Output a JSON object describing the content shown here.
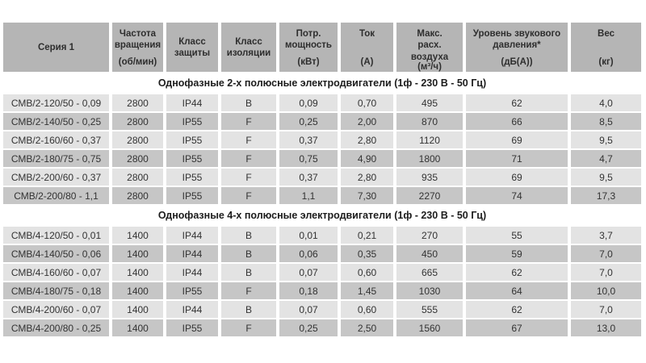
{
  "colors": {
    "page_bg": "#ffffff",
    "header_bg": "#b5b5b5",
    "row_light": "#e3e3e3",
    "row_dark": "#c6c6c6",
    "text": "#333333",
    "heading_text": "#1c1c1c"
  },
  "table": {
    "columns": [
      {
        "title": "Серия 1",
        "unit": ""
      },
      {
        "title": "Частота\nвращения",
        "unit": "(об/мин)"
      },
      {
        "title": "Класс\nзащиты",
        "unit": ""
      },
      {
        "title": "Класс\nизоляции",
        "unit": ""
      },
      {
        "title": "Потр.\nмощность",
        "unit": "(кВт)"
      },
      {
        "title": "Ток",
        "unit": "(А)"
      },
      {
        "title": "Макс.\nрасх.\nвоздуха",
        "unit": "(м³/ч)"
      },
      {
        "title": "Уровень звукового\nдавления*",
        "unit": "(дБ(А))"
      },
      {
        "title": "Вес",
        "unit": "(кг)"
      }
    ],
    "sections": [
      {
        "heading": "Однофазные 2-х полюсные электродвигатели (1ф - 230 В - 50 Гц)",
        "rows": [
          [
            "СМВ/2-120/50 - 0,09",
            "2800",
            "IP44",
            "B",
            "0,09",
            "0,70",
            "495",
            "62",
            "4,0"
          ],
          [
            "СМВ/2-140/50 - 0,25",
            "2800",
            "IP55",
            "F",
            "0,25",
            "2,00",
            "870",
            "66",
            "8,5"
          ],
          [
            "СМВ/2-160/60 - 0,37",
            "2800",
            "IP55",
            "F",
            "0,37",
            "2,80",
            "1120",
            "69",
            "9,5"
          ],
          [
            "СМВ/2-180/75 - 0,75",
            "2800",
            "IP55",
            "F",
            "0,75",
            "4,90",
            "1800",
            "71",
            "4,7"
          ],
          [
            "СМВ/2-200/60 - 0,37",
            "2800",
            "IP55",
            "F",
            "0,37",
            "2,80",
            "935",
            "69",
            "9,5"
          ],
          [
            "СМВ/2-200/80 - 1,1",
            "2800",
            "IP55",
            "F",
            "1,1",
            "7,30",
            "2270",
            "74",
            "17,3"
          ]
        ]
      },
      {
        "heading": "Однофазные 4-х полюсные электродвигатели (1ф - 230 В - 50 Гц)",
        "rows": [
          [
            "СМВ/4-120/50 - 0,01",
            "1400",
            "IP44",
            "B",
            "0,01",
            "0,21",
            "270",
            "55",
            "3,7"
          ],
          [
            "СМВ/4-140/50 - 0,06",
            "1400",
            "IP44",
            "B",
            "0,06",
            "0,35",
            "450",
            "59",
            "7,0"
          ],
          [
            "СМВ/4-160/60 - 0,07",
            "1400",
            "IP44",
            "B",
            "0,07",
            "0,60",
            "665",
            "62",
            "7,0"
          ],
          [
            "СМВ/4-180/75 - 0,18",
            "1400",
            "IP55",
            "F",
            "0,18",
            "1,45",
            "1030",
            "64",
            "10,0"
          ],
          [
            "СМВ/4-200/60 - 0,07",
            "1400",
            "IP44",
            "B",
            "0,07",
            "0,60",
            "555",
            "62",
            "7,0"
          ],
          [
            "СМВ/4-200/80 - 0,25",
            "1400",
            "IP55",
            "F",
            "0,25",
            "2,50",
            "1560",
            "67",
            "13,0"
          ]
        ]
      }
    ]
  }
}
